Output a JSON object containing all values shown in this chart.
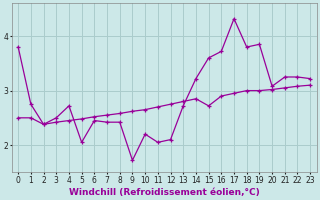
{
  "line1_x": [
    0,
    1,
    2,
    3,
    4,
    5,
    6,
    7,
    8,
    9,
    10,
    11,
    12,
    13,
    14,
    15,
    16,
    17,
    18,
    19,
    20,
    21,
    22,
    23
  ],
  "line1_y": [
    3.8,
    2.75,
    2.38,
    2.5,
    2.72,
    2.05,
    2.45,
    2.42,
    2.42,
    1.72,
    2.2,
    2.05,
    2.1,
    2.72,
    3.22,
    3.6,
    3.72,
    4.32,
    3.8,
    3.85,
    3.08,
    3.25,
    3.25,
    3.22
  ],
  "line2_x": [
    0,
    1,
    2,
    3,
    4,
    5,
    6,
    7,
    8,
    9,
    10,
    11,
    12,
    13,
    14,
    15,
    16,
    17,
    18,
    19,
    20,
    21,
    22,
    23
  ],
  "line2_y": [
    2.5,
    2.5,
    2.38,
    2.42,
    2.45,
    2.48,
    2.52,
    2.55,
    2.58,
    2.62,
    2.65,
    2.7,
    2.75,
    2.8,
    2.85,
    2.72,
    2.9,
    2.95,
    3.0,
    3.0,
    3.02,
    3.05,
    3.08,
    3.1
  ],
  "line_color": "#990099",
  "bg_color": "#cce8e8",
  "grid_color": "#aacccc",
  "xlabel": "Windchill (Refroidissement éolien,°C)",
  "ylim": [
    1.5,
    4.6
  ],
  "xlim": [
    -0.5,
    23.5
  ],
  "yticks": [
    2,
    3,
    4
  ],
  "xticks": [
    0,
    1,
    2,
    3,
    4,
    5,
    6,
    7,
    8,
    9,
    10,
    11,
    12,
    13,
    14,
    15,
    16,
    17,
    18,
    19,
    20,
    21,
    22,
    23
  ],
  "tick_fontsize": 5.5,
  "xlabel_fontsize": 6.5
}
